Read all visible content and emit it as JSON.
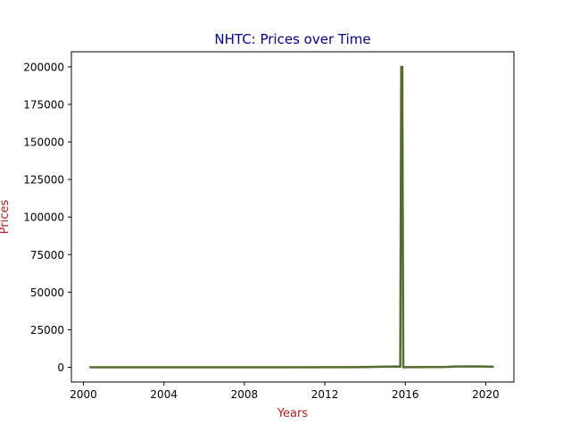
{
  "chart_data": {
    "type": "line",
    "title": "NHTC: Prices over Time",
    "xlabel": "Years",
    "ylabel": "Prices",
    "x_ticks": [
      "2000",
      "2004",
      "2008",
      "2012",
      "2016",
      "2020"
    ],
    "y_ticks": [
      "0",
      "25000",
      "50000",
      "75000",
      "100000",
      "125000",
      "150000",
      "175000",
      "200000"
    ],
    "xlim": [
      1999.4,
      2021.4
    ],
    "ylim": [
      -9800,
      210000
    ],
    "grid": false,
    "legend": "none",
    "series": [
      {
        "color": "#556b2f",
        "x": [
          2000.3,
          2005.0,
          2010.0,
          2013.5,
          2014.5,
          2015.5,
          2015.75,
          2015.8,
          2015.85,
          2015.9,
          2016.0,
          2018.0,
          2018.5,
          2019.5,
          2020.4
        ],
        "y": [
          0,
          0,
          0,
          50,
          300,
          500,
          400,
          200000,
          200000,
          0,
          100,
          200,
          500,
          600,
          400
        ]
      }
    ],
    "colors": {
      "title": "#00008b",
      "axis_label": "#b22222",
      "line": "#556b2f"
    }
  }
}
